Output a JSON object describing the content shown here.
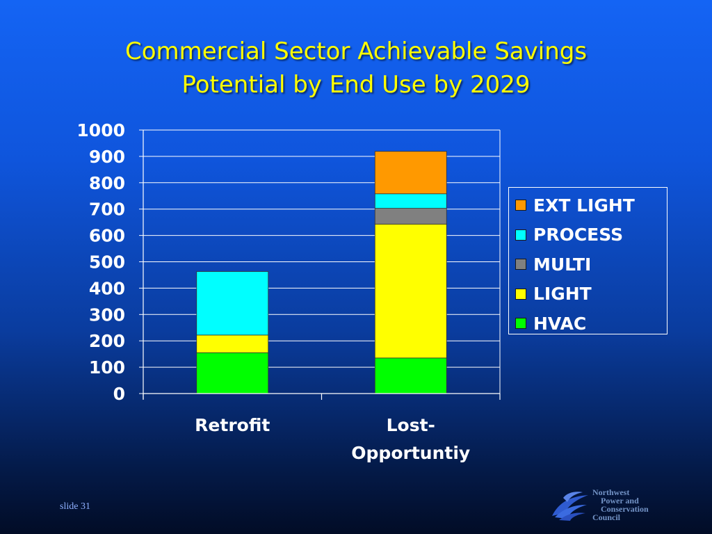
{
  "title": {
    "line1": "Commercial Sector Achievable Savings",
    "line2": "Potential by End Use by 2029"
  },
  "chart_data": {
    "type": "bar",
    "stacked": true,
    "categories": [
      "Retrofit",
      "Lost-\nOpportuntiy"
    ],
    "category_lines": [
      [
        "Retrofit"
      ],
      [
        "Lost-",
        "Opportuntiy"
      ]
    ],
    "series": [
      {
        "name": "HVAC",
        "color": "#00ff00",
        "values": [
          155,
          135
        ]
      },
      {
        "name": "LIGHT",
        "color": "#ffff00",
        "values": [
          67,
          508
        ]
      },
      {
        "name": "MULTI",
        "color": "#808080",
        "values": [
          0,
          60
        ]
      },
      {
        "name": "PROCESS",
        "color": "#00ffff",
        "values": [
          241,
          55
        ]
      },
      {
        "name": "EXT LIGHT",
        "color": "#ff9900",
        "values": [
          0,
          161
        ]
      }
    ],
    "ylim": [
      0,
      1000
    ],
    "yticks": [
      0,
      100,
      200,
      300,
      400,
      500,
      600,
      700,
      800,
      900,
      1000
    ],
    "grid": true,
    "legend_position": "right",
    "legend_order": [
      "EXT LIGHT",
      "PROCESS",
      "MULTI",
      "LIGHT",
      "HVAC"
    ]
  },
  "footer": {
    "slide_label": "slide 31",
    "logo_lines": [
      "Northwest",
      "Power and",
      "Conservation",
      "Council"
    ],
    "logo_icon": "wave-logo-icon"
  }
}
